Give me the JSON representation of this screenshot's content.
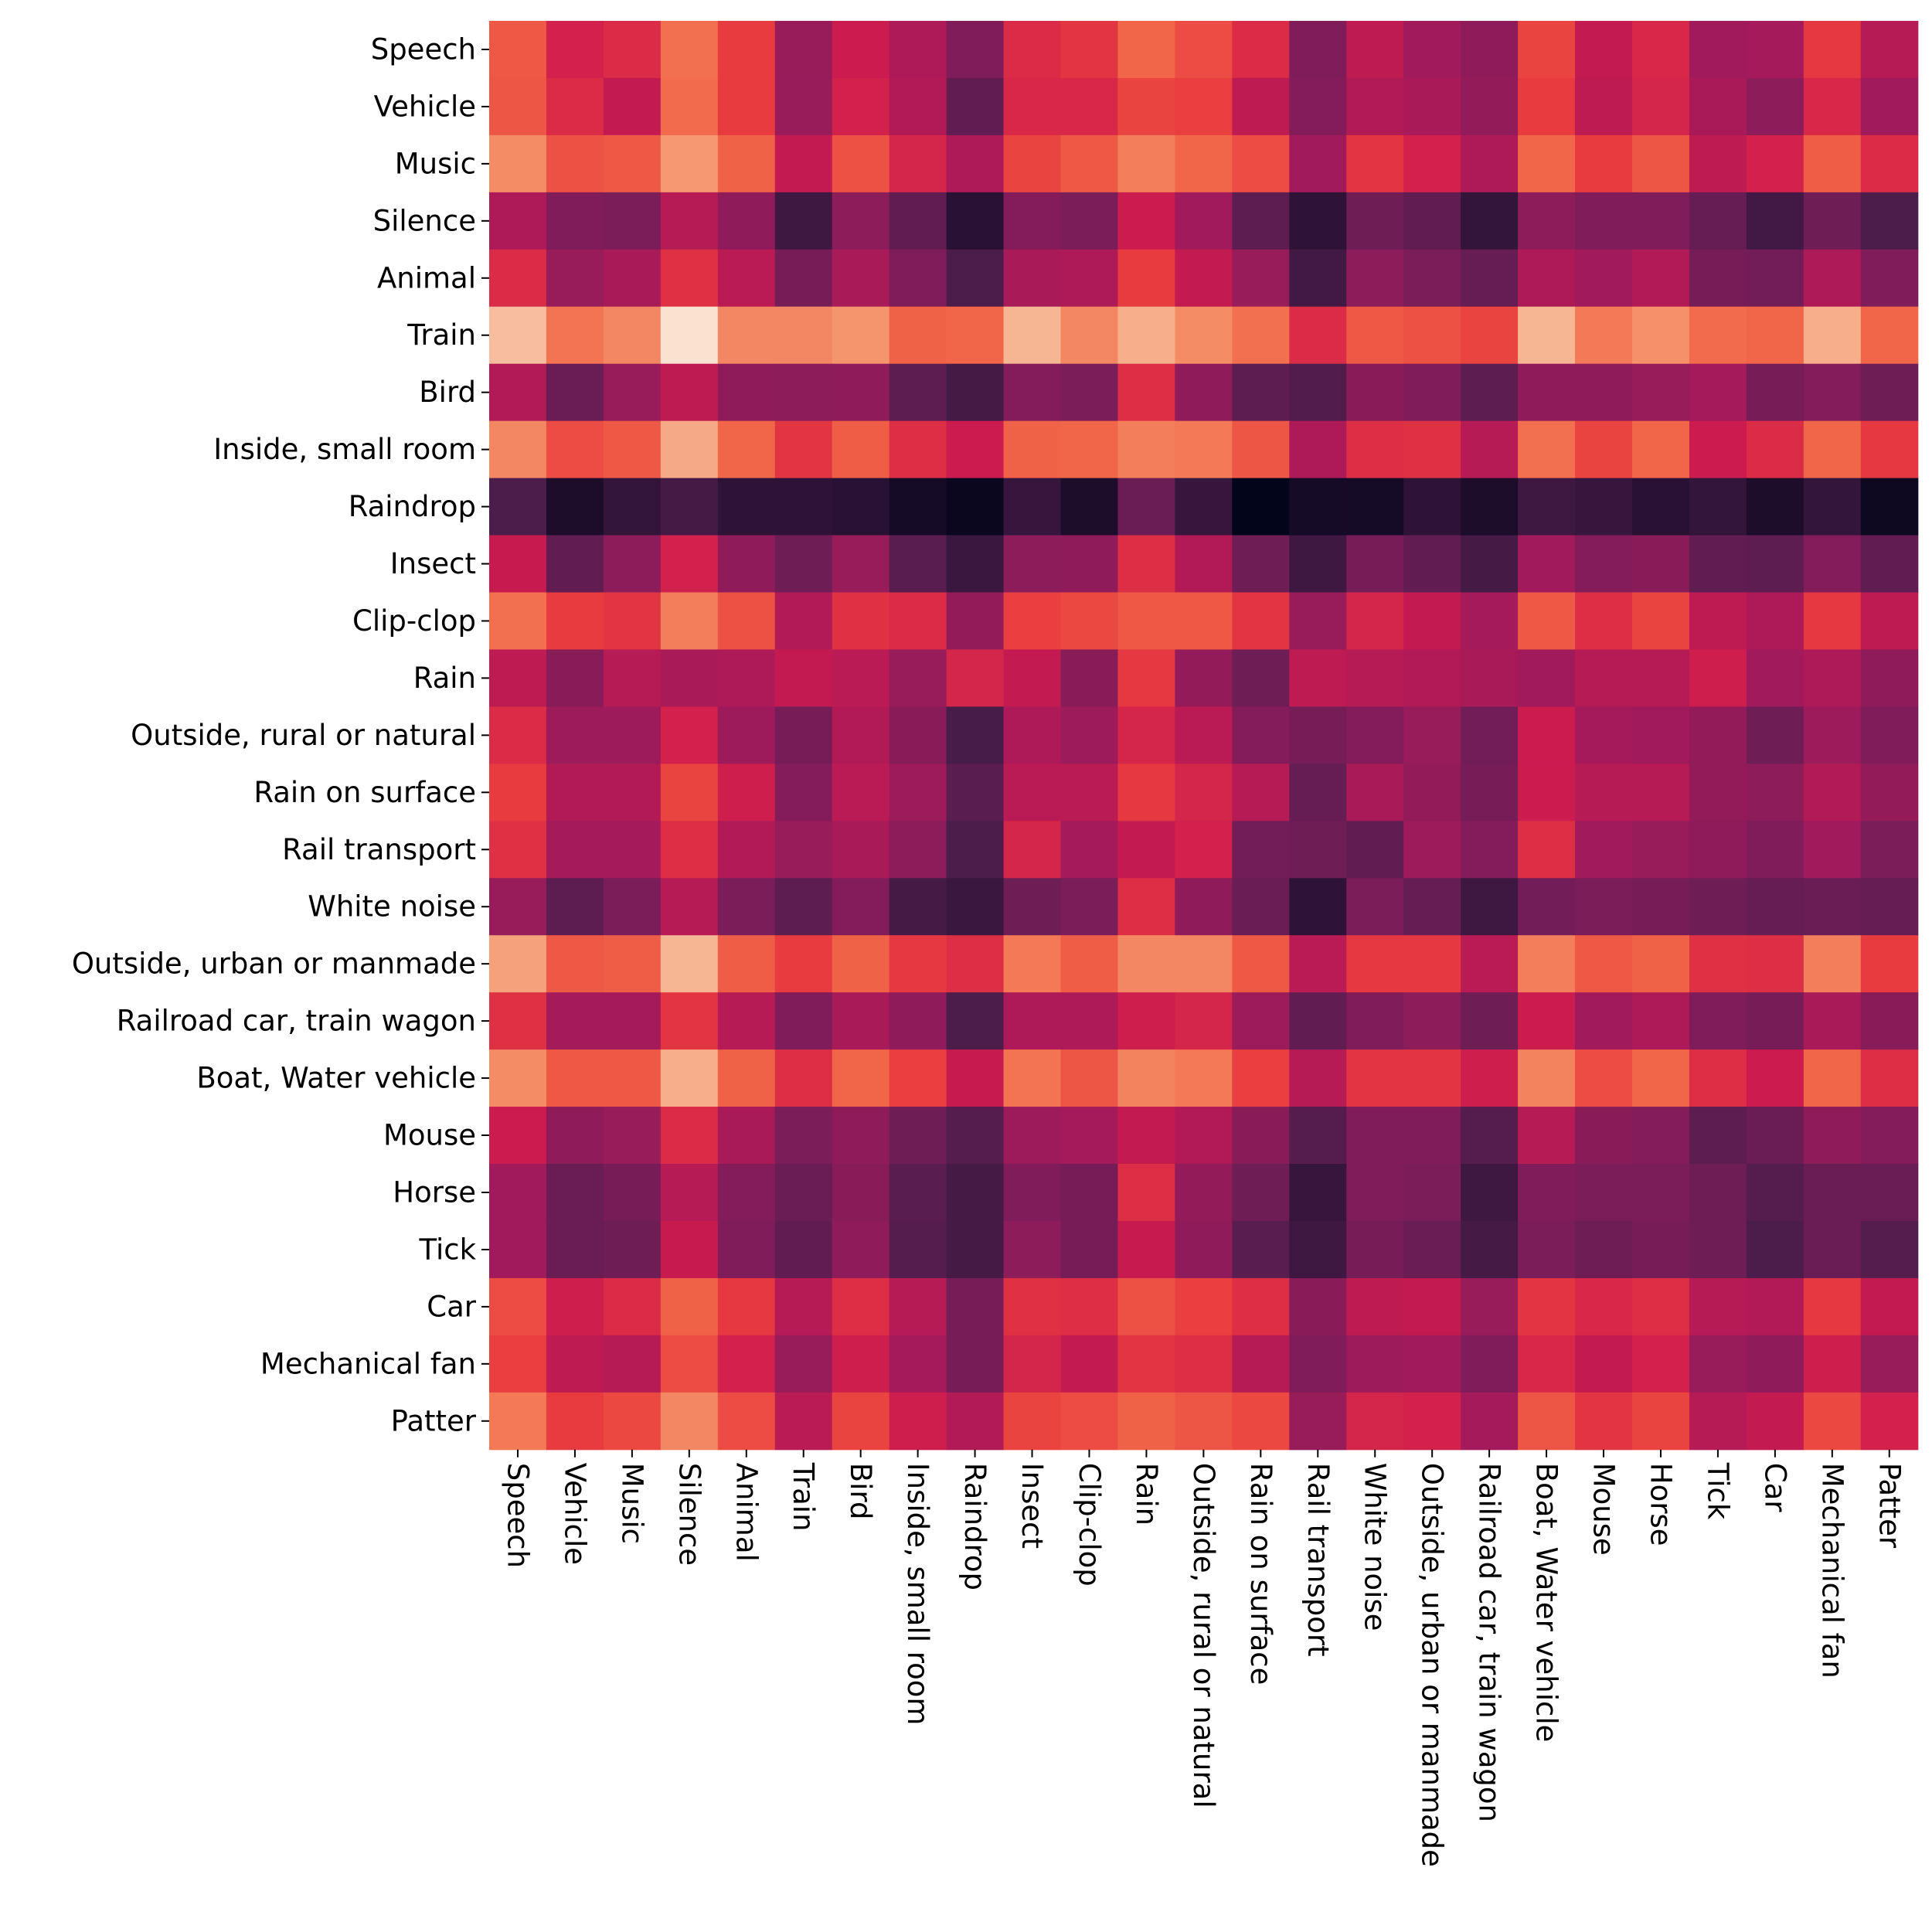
{
  "chart_data": {
    "type": "heatmap",
    "title": "",
    "xlabel": "",
    "ylabel": "",
    "colormap": "rocket",
    "value_range": [
      0,
      1
    ],
    "rows": [
      "Speech",
      "Vehicle",
      "Music",
      "Silence",
      "Animal",
      "Train",
      "Bird",
      "Inside, small room",
      "Raindrop",
      "Insect",
      "Clip-clop",
      "Rain",
      "Outside, rural or natural",
      "Rain on surface",
      "Rail transport",
      "White noise",
      "Outside, urban or manmade",
      "Railroad car, train wagon",
      "Boat, Water vehicle",
      "Mouse",
      "Horse",
      "Tick",
      "Car",
      "Mechanical fan",
      "Patter"
    ],
    "columns": [
      "Speech",
      "Vehicle",
      "Music",
      "Silence",
      "Animal",
      "Train",
      "Bird",
      "Inside, small room",
      "Raindrop",
      "Insect",
      "Clip-clop",
      "Rain",
      "Outside, rural or natural",
      "Rain on surface",
      "Rail transport",
      "White noise",
      "Outside, urban or manmade",
      "Railroad car, train wagon",
      "Boat, Water vehicle",
      "Mouse",
      "Horse",
      "Tick",
      "Car",
      "Mechanical fan",
      "Patter"
    ],
    "values": [
      [
        0.67,
        0.52,
        0.55,
        0.72,
        0.6,
        0.38,
        0.5,
        0.43,
        0.32,
        0.55,
        0.58,
        0.7,
        0.64,
        0.55,
        0.32,
        0.47,
        0.4,
        0.36,
        0.62,
        0.48,
        0.54,
        0.4,
        0.41,
        0.59,
        0.45
      ],
      [
        0.66,
        0.55,
        0.48,
        0.71,
        0.6,
        0.38,
        0.52,
        0.44,
        0.25,
        0.54,
        0.54,
        0.62,
        0.61,
        0.47,
        0.33,
        0.44,
        0.42,
        0.37,
        0.6,
        0.47,
        0.53,
        0.42,
        0.35,
        0.54,
        0.4
      ],
      [
        0.78,
        0.65,
        0.67,
        0.81,
        0.69,
        0.48,
        0.65,
        0.53,
        0.43,
        0.62,
        0.67,
        0.75,
        0.7,
        0.64,
        0.4,
        0.58,
        0.52,
        0.43,
        0.7,
        0.6,
        0.66,
        0.47,
        0.52,
        0.68,
        0.55
      ],
      [
        0.43,
        0.32,
        0.31,
        0.45,
        0.36,
        0.16,
        0.35,
        0.25,
        0.1,
        0.33,
        0.31,
        0.5,
        0.4,
        0.24,
        0.12,
        0.28,
        0.25,
        0.13,
        0.35,
        0.32,
        0.32,
        0.26,
        0.17,
        0.28,
        0.2
      ],
      [
        0.55,
        0.38,
        0.42,
        0.57,
        0.46,
        0.3,
        0.42,
        0.32,
        0.2,
        0.42,
        0.43,
        0.6,
        0.48,
        0.38,
        0.17,
        0.35,
        0.31,
        0.26,
        0.43,
        0.4,
        0.44,
        0.3,
        0.29,
        0.43,
        0.32
      ],
      [
        0.9,
        0.73,
        0.77,
        0.98,
        0.77,
        0.77,
        0.8,
        0.69,
        0.7,
        0.88,
        0.77,
        0.86,
        0.78,
        0.72,
        0.55,
        0.67,
        0.65,
        0.62,
        0.88,
        0.74,
        0.79,
        0.71,
        0.7,
        0.86,
        0.7
      ],
      [
        0.44,
        0.27,
        0.38,
        0.47,
        0.36,
        0.35,
        0.36,
        0.24,
        0.18,
        0.33,
        0.31,
        0.56,
        0.36,
        0.24,
        0.21,
        0.34,
        0.32,
        0.24,
        0.36,
        0.36,
        0.38,
        0.41,
        0.3,
        0.33,
        0.28
      ],
      [
        0.77,
        0.64,
        0.67,
        0.85,
        0.7,
        0.58,
        0.68,
        0.56,
        0.5,
        0.69,
        0.7,
        0.75,
        0.74,
        0.66,
        0.43,
        0.56,
        0.57,
        0.45,
        0.72,
        0.62,
        0.7,
        0.5,
        0.55,
        0.7,
        0.59
      ],
      [
        0.2,
        0.07,
        0.13,
        0.18,
        0.12,
        0.12,
        0.1,
        0.05,
        0.02,
        0.14,
        0.07,
        0.27,
        0.14,
        0.0,
        0.05,
        0.05,
        0.12,
        0.07,
        0.16,
        0.14,
        0.1,
        0.13,
        0.07,
        0.13,
        0.03
      ],
      [
        0.49,
        0.25,
        0.35,
        0.52,
        0.36,
        0.28,
        0.38,
        0.23,
        0.15,
        0.35,
        0.36,
        0.56,
        0.44,
        0.28,
        0.16,
        0.3,
        0.25,
        0.18,
        0.4,
        0.33,
        0.34,
        0.25,
        0.24,
        0.33,
        0.25
      ],
      [
        0.72,
        0.6,
        0.58,
        0.75,
        0.65,
        0.44,
        0.57,
        0.55,
        0.37,
        0.61,
        0.63,
        0.67,
        0.67,
        0.58,
        0.38,
        0.53,
        0.48,
        0.41,
        0.67,
        0.56,
        0.62,
        0.47,
        0.43,
        0.59,
        0.47
      ],
      [
        0.47,
        0.34,
        0.45,
        0.42,
        0.43,
        0.48,
        0.46,
        0.38,
        0.53,
        0.48,
        0.34,
        0.59,
        0.37,
        0.28,
        0.47,
        0.45,
        0.44,
        0.42,
        0.4,
        0.45,
        0.45,
        0.51,
        0.4,
        0.43,
        0.36
      ],
      [
        0.55,
        0.39,
        0.39,
        0.52,
        0.39,
        0.3,
        0.44,
        0.34,
        0.19,
        0.43,
        0.39,
        0.53,
        0.46,
        0.33,
        0.3,
        0.33,
        0.38,
        0.29,
        0.5,
        0.41,
        0.4,
        0.37,
        0.28,
        0.39,
        0.32
      ],
      [
        0.6,
        0.44,
        0.44,
        0.62,
        0.51,
        0.33,
        0.46,
        0.39,
        0.23,
        0.46,
        0.46,
        0.59,
        0.53,
        0.45,
        0.26,
        0.42,
        0.37,
        0.3,
        0.5,
        0.45,
        0.45,
        0.37,
        0.35,
        0.44,
        0.37
      ],
      [
        0.57,
        0.41,
        0.41,
        0.56,
        0.44,
        0.38,
        0.42,
        0.35,
        0.2,
        0.53,
        0.41,
        0.48,
        0.52,
        0.29,
        0.28,
        0.25,
        0.39,
        0.33,
        0.56,
        0.4,
        0.38,
        0.36,
        0.32,
        0.4,
        0.31
      ],
      [
        0.38,
        0.24,
        0.31,
        0.45,
        0.31,
        0.24,
        0.33,
        0.18,
        0.15,
        0.28,
        0.31,
        0.56,
        0.36,
        0.27,
        0.12,
        0.31,
        0.26,
        0.16,
        0.29,
        0.31,
        0.3,
        0.28,
        0.26,
        0.27,
        0.26
      ],
      [
        0.83,
        0.67,
        0.68,
        0.88,
        0.68,
        0.6,
        0.69,
        0.59,
        0.56,
        0.74,
        0.68,
        0.77,
        0.77,
        0.67,
        0.46,
        0.59,
        0.59,
        0.46,
        0.75,
        0.67,
        0.69,
        0.57,
        0.56,
        0.75,
        0.6
      ],
      [
        0.57,
        0.41,
        0.41,
        0.58,
        0.45,
        0.32,
        0.42,
        0.36,
        0.2,
        0.43,
        0.43,
        0.51,
        0.53,
        0.39,
        0.25,
        0.32,
        0.35,
        0.28,
        0.5,
        0.4,
        0.43,
        0.32,
        0.3,
        0.42,
        0.34
      ],
      [
        0.78,
        0.67,
        0.67,
        0.86,
        0.69,
        0.56,
        0.7,
        0.61,
        0.49,
        0.73,
        0.66,
        0.76,
        0.74,
        0.61,
        0.45,
        0.58,
        0.58,
        0.51,
        0.76,
        0.64,
        0.7,
        0.56,
        0.5,
        0.7,
        0.56
      ],
      [
        0.5,
        0.36,
        0.38,
        0.55,
        0.42,
        0.31,
        0.36,
        0.28,
        0.22,
        0.39,
        0.41,
        0.48,
        0.44,
        0.34,
        0.22,
        0.32,
        0.32,
        0.22,
        0.45,
        0.34,
        0.33,
        0.24,
        0.27,
        0.36,
        0.33
      ],
      [
        0.4,
        0.27,
        0.3,
        0.45,
        0.33,
        0.27,
        0.34,
        0.23,
        0.18,
        0.32,
        0.3,
        0.56,
        0.37,
        0.28,
        0.14,
        0.32,
        0.31,
        0.16,
        0.32,
        0.31,
        0.31,
        0.28,
        0.22,
        0.27,
        0.27
      ],
      [
        0.4,
        0.27,
        0.28,
        0.49,
        0.32,
        0.25,
        0.36,
        0.22,
        0.18,
        0.35,
        0.3,
        0.49,
        0.36,
        0.23,
        0.16,
        0.3,
        0.27,
        0.18,
        0.31,
        0.28,
        0.3,
        0.28,
        0.2,
        0.27,
        0.22
      ],
      [
        0.64,
        0.51,
        0.55,
        0.69,
        0.59,
        0.45,
        0.56,
        0.45,
        0.3,
        0.57,
        0.56,
        0.65,
        0.61,
        0.56,
        0.34,
        0.47,
        0.48,
        0.38,
        0.58,
        0.54,
        0.56,
        0.45,
        0.44,
        0.59,
        0.48
      ],
      [
        0.61,
        0.47,
        0.45,
        0.64,
        0.52,
        0.38,
        0.51,
        0.41,
        0.3,
        0.53,
        0.48,
        0.58,
        0.56,
        0.45,
        0.32,
        0.39,
        0.4,
        0.32,
        0.54,
        0.48,
        0.52,
        0.38,
        0.36,
        0.51,
        0.38
      ],
      [
        0.74,
        0.6,
        0.63,
        0.77,
        0.64,
        0.46,
        0.62,
        0.51,
        0.44,
        0.62,
        0.64,
        0.69,
        0.66,
        0.63,
        0.38,
        0.53,
        0.52,
        0.41,
        0.66,
        0.58,
        0.62,
        0.45,
        0.48,
        0.63,
        0.52
      ]
    ]
  }
}
